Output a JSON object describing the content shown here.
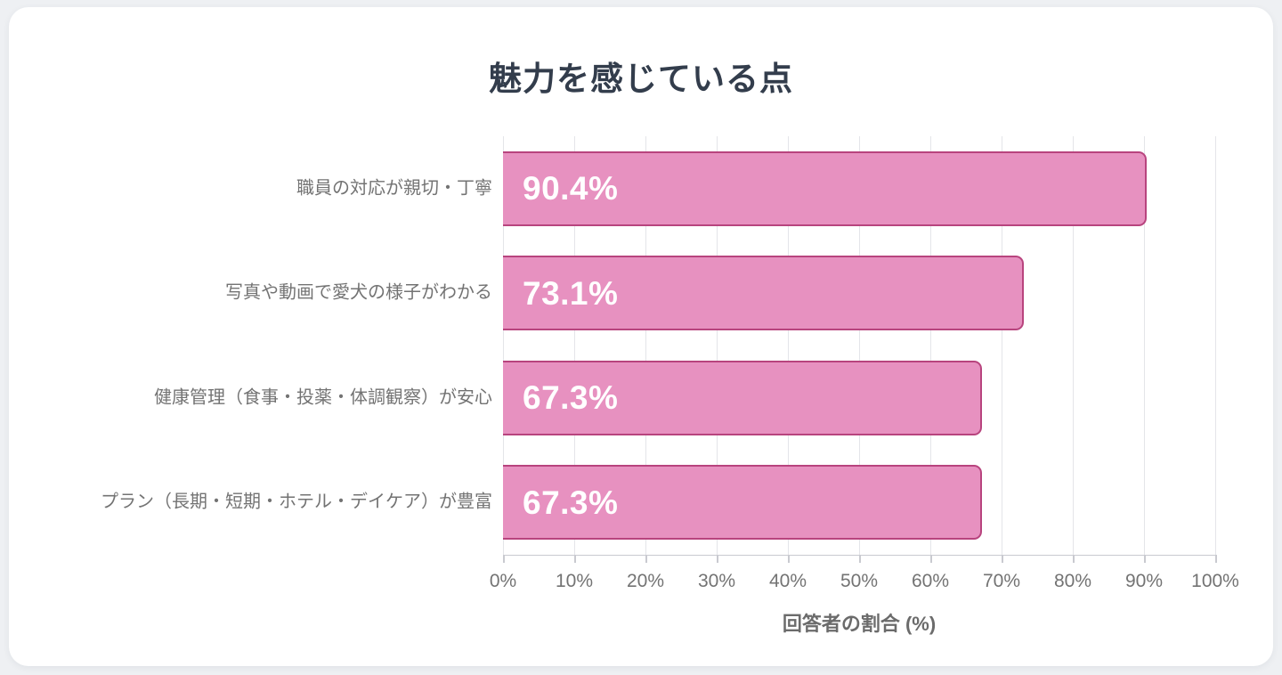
{
  "chart_data": {
    "type": "bar",
    "orientation": "horizontal",
    "title": "魅力を感じている点",
    "categories": [
      "職員の対応が親切・丁寧",
      "写真や動画で愛犬の様子がわかる",
      "健康管理（食事・投薬・体調観察）が安心",
      "プラン（長期・短期・ホテル・デイケア）が豊富"
    ],
    "values": [
      90.4,
      73.1,
      67.3,
      67.3
    ],
    "value_labels": [
      "90.4%",
      "73.1%",
      "67.3%",
      "67.3%"
    ],
    "xlabel": "回答者の割合 (%)",
    "x_ticks": [
      "0%",
      "10%",
      "20%",
      "30%",
      "40%",
      "50%",
      "60%",
      "70%",
      "80%",
      "90%",
      "100%"
    ],
    "xlim": [
      0,
      100
    ],
    "grid": true,
    "legend": "none",
    "colors": {
      "bar_fill": "#e791c0",
      "bar_border": "#b8447e",
      "value_label": "#ffffff",
      "title": "#333d4c",
      "axis_text": "#737373",
      "grid_line": "#e4e5e9",
      "card_background": "#ffffff",
      "page_background": "#eef0f3"
    }
  }
}
